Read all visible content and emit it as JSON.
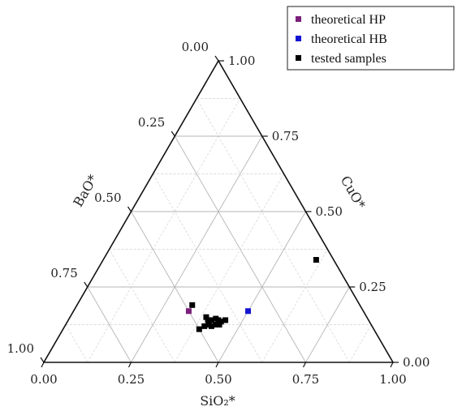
{
  "chart_data": {
    "type": "ternary-scatter",
    "axes": {
      "bottom": {
        "label": "SiO₂*",
        "ticks": [
          "0.00",
          "0.25",
          "0.50",
          "0.75",
          "1.00"
        ]
      },
      "left": {
        "label": "BaO*",
        "ticks": [
          "0.00",
          "0.25",
          "0.50",
          "0.75",
          "1.00"
        ]
      },
      "right": {
        "label": "CuO*",
        "ticks": [
          "0.00",
          "0.25",
          "0.50",
          "0.75",
          "1.00"
        ]
      }
    },
    "grid": true,
    "legend_position": "top-right",
    "series": [
      {
        "name": "theoretical HP",
        "color": "#7b1f7b",
        "points": [
          {
            "sio2": 0.33,
            "cuo": 0.17,
            "bao": 0.5
          }
        ]
      },
      {
        "name": "theoretical HB",
        "color": "#1414d2",
        "points": [
          {
            "sio2": 0.5,
            "cuo": 0.17,
            "bao": 0.33
          }
        ]
      },
      {
        "name": "tested samples",
        "color": "#000000",
        "points": [
          {
            "sio2": 0.61,
            "cuo": 0.34,
            "bao": 0.05
          },
          {
            "sio2": 0.33,
            "cuo": 0.19,
            "bao": 0.48
          },
          {
            "sio2": 0.39,
            "cuo": 0.15,
            "bao": 0.46
          },
          {
            "sio2": 0.4,
            "cuo": 0.14,
            "bao": 0.46
          },
          {
            "sio2": 0.41,
            "cuo": 0.14,
            "bao": 0.45
          },
          {
            "sio2": 0.42,
            "cuo": 0.145,
            "bao": 0.435
          },
          {
            "sio2": 0.43,
            "cuo": 0.14,
            "bao": 0.43
          },
          {
            "sio2": 0.44,
            "cuo": 0.135,
            "bao": 0.425
          },
          {
            "sio2": 0.45,
            "cuo": 0.14,
            "bao": 0.41
          },
          {
            "sio2": 0.4,
            "cuo": 0.12,
            "bao": 0.48
          },
          {
            "sio2": 0.42,
            "cuo": 0.12,
            "bao": 0.46
          },
          {
            "sio2": 0.44,
            "cuo": 0.125,
            "bao": 0.435
          },
          {
            "sio2": 0.43,
            "cuo": 0.125,
            "bao": 0.445
          },
          {
            "sio2": 0.39,
            "cuo": 0.11,
            "bao": 0.5
          },
          {
            "sio2": 0.41,
            "cuo": 0.125,
            "bao": 0.465
          }
        ]
      }
    ]
  }
}
